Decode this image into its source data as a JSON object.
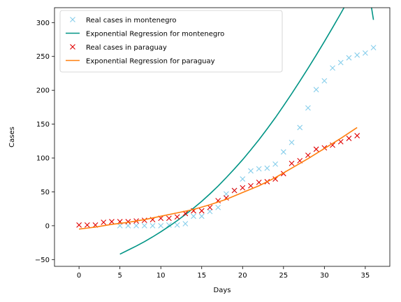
{
  "chart_data": {
    "type": "line",
    "xlabel": "Days",
    "ylabel": "Cases",
    "xlim": [
      -3,
      38
    ],
    "ylim": [
      -60,
      322
    ],
    "x_ticks": [
      0,
      5,
      10,
      15,
      20,
      25,
      30,
      35
    ],
    "y_ticks": [
      -50,
      0,
      50,
      100,
      150,
      200,
      250,
      300
    ],
    "grid": false,
    "legend_position": "top-left",
    "series": [
      {
        "name": "Real cases in montenegro",
        "kind": "scatter",
        "marker": "x",
        "color": "#87ceeb",
        "x": [
          5,
          6,
          7,
          8,
          9,
          10,
          11,
          12,
          13,
          14,
          15,
          16,
          17,
          18,
          19,
          20,
          21,
          22,
          23,
          24,
          25,
          26,
          27,
          28,
          29,
          30,
          31,
          32,
          33,
          34,
          35,
          36
        ],
        "y": [
          0,
          0,
          0,
          0,
          0,
          0,
          1,
          1,
          3,
          14,
          14,
          21,
          27,
          47,
          52,
          69,
          81,
          84,
          85,
          91,
          109,
          123,
          145,
          174,
          201,
          214,
          233,
          241,
          248,
          252,
          255,
          263
        ]
      },
      {
        "name": "Exponential Regression for montenegro",
        "kind": "line",
        "color": "#009485",
        "x": [
          5,
          6,
          7,
          8,
          9,
          10,
          11,
          12,
          13,
          14,
          15,
          16,
          17,
          18,
          19,
          20,
          21,
          22,
          23,
          24,
          25,
          26,
          27,
          28,
          29,
          30,
          31,
          32,
          33,
          34,
          35,
          36
        ],
        "y": [
          -42,
          -36,
          -30,
          -23.5,
          -16.5,
          -9,
          -1,
          7.5,
          16.5,
          26,
          36,
          47,
          58.5,
          71,
          84,
          97.5,
          112,
          127,
          143,
          159.5,
          177,
          195,
          213.5,
          232.5,
          252,
          272,
          292.5,
          313.5,
          335,
          357,
          380,
          304
        ]
      },
      {
        "name": "Real cases in paraguay",
        "kind": "scatter",
        "marker": "x",
        "color": "#e00000",
        "x": [
          0,
          1,
          2,
          3,
          4,
          5,
          6,
          7,
          8,
          9,
          10,
          11,
          12,
          13,
          14,
          15,
          16,
          17,
          18,
          19,
          20,
          21,
          22,
          23,
          24,
          25,
          26,
          27,
          28,
          29,
          30,
          31,
          32,
          33,
          34
        ],
        "y": [
          1,
          1,
          1,
          5,
          6,
          6,
          6,
          7,
          8,
          9,
          11,
          11,
          13,
          18,
          22,
          22,
          27,
          37,
          41,
          52,
          56,
          59,
          64,
          65,
          69,
          77,
          92,
          96,
          104,
          113,
          115,
          119,
          124,
          129,
          133
        ]
      },
      {
        "name": "Exponential Regression for paraguay",
        "kind": "line",
        "color": "#ff7f0e",
        "x": [
          0,
          2,
          4,
          6,
          8,
          10,
          12,
          14,
          16,
          18,
          20,
          22,
          24,
          26,
          28,
          30,
          32,
          34
        ],
        "y": [
          -5,
          -2,
          2,
          5,
          9,
          14,
          19,
          24,
          31,
          39,
          49,
          59,
          71,
          85,
          99,
          114,
          129,
          145
        ]
      }
    ]
  }
}
